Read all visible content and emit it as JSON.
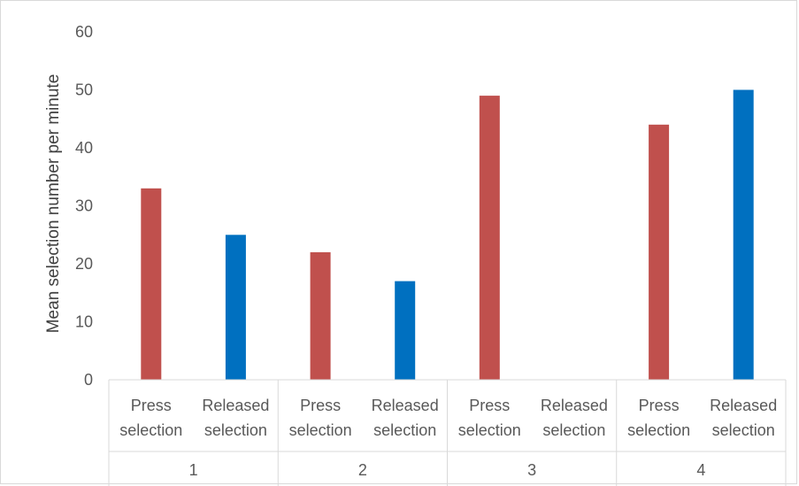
{
  "chart_data": {
    "type": "bar",
    "ylabel": "Mean selection number per minute",
    "ylim": [
      0,
      60
    ],
    "yticks": [
      0,
      10,
      20,
      30,
      40,
      50,
      60
    ],
    "groups": [
      {
        "label": "1",
        "bars": [
          {
            "label_lines": [
              "Press",
              "selection"
            ],
            "value": 33,
            "color": "#c0504d"
          },
          {
            "label_lines": [
              "Released",
              "selection"
            ],
            "value": 25,
            "color": "#0070c0"
          }
        ]
      },
      {
        "label": "2",
        "bars": [
          {
            "label_lines": [
              "Press",
              "selection"
            ],
            "value": 22,
            "color": "#c0504d"
          },
          {
            "label_lines": [
              "Released",
              "selection"
            ],
            "value": 17,
            "color": "#0070c0"
          }
        ]
      },
      {
        "label": "3",
        "bars": [
          {
            "label_lines": [
              "Press",
              "selection"
            ],
            "value": 49,
            "color": "#c0504d"
          },
          {
            "label_lines": [
              "Released",
              "selection"
            ],
            "value": 0,
            "color": "#0070c0"
          }
        ]
      },
      {
        "label": "4",
        "bars": [
          {
            "label_lines": [
              "Press",
              "selection"
            ],
            "value": 44,
            "color": "#c0504d"
          },
          {
            "label_lines": [
              "Released",
              "selection"
            ],
            "value": 50,
            "color": "#0070c0"
          }
        ]
      }
    ],
    "grid": false,
    "legend": "none"
  }
}
